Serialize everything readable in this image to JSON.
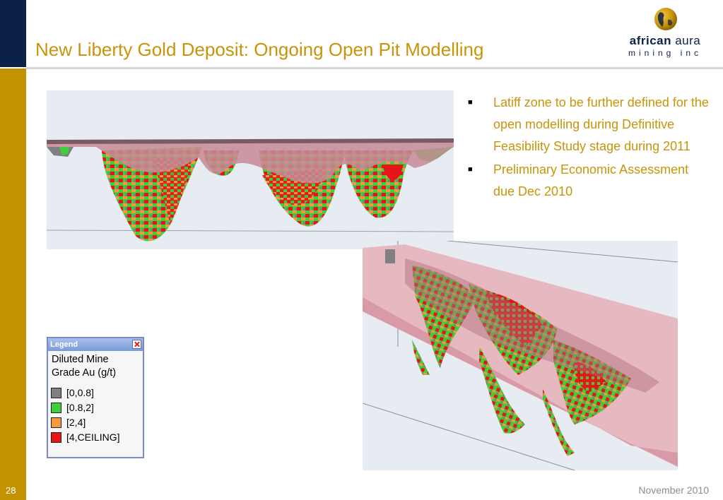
{
  "slide": {
    "title": "New Liberty Gold Deposit: Ongoing Open Pit Modelling",
    "page_number": "28",
    "date": "November 2010"
  },
  "logo": {
    "name_bold": "african",
    "name_light": "aura",
    "subtitle": "mining inc",
    "icon": "globe-icon"
  },
  "bullets": [
    {
      "text": "Latiff zone to be further defined for the open modelling during Definitive Feasibility Study stage during 2011"
    },
    {
      "text": "Preliminary Economic Assessment due Dec 2010"
    }
  ],
  "legend": {
    "title": "Legend",
    "heading": "Diluted Mine Grade Au (g/t)",
    "items": [
      {
        "label": "[0,0.8]",
        "color": "#808080"
      },
      {
        "label": "[0.8,2]",
        "color": "#3fcf3a"
      },
      {
        "label": "[2,4]",
        "color": "#f49a3c"
      },
      {
        "label": "[4,CEILING]",
        "color": "#e8141a"
      }
    ]
  },
  "colors": {
    "accent_gold": "#c8940a",
    "navy": "#0c2147",
    "pit_pink": "#c88a96",
    "background_model": "#e7ecf3"
  }
}
